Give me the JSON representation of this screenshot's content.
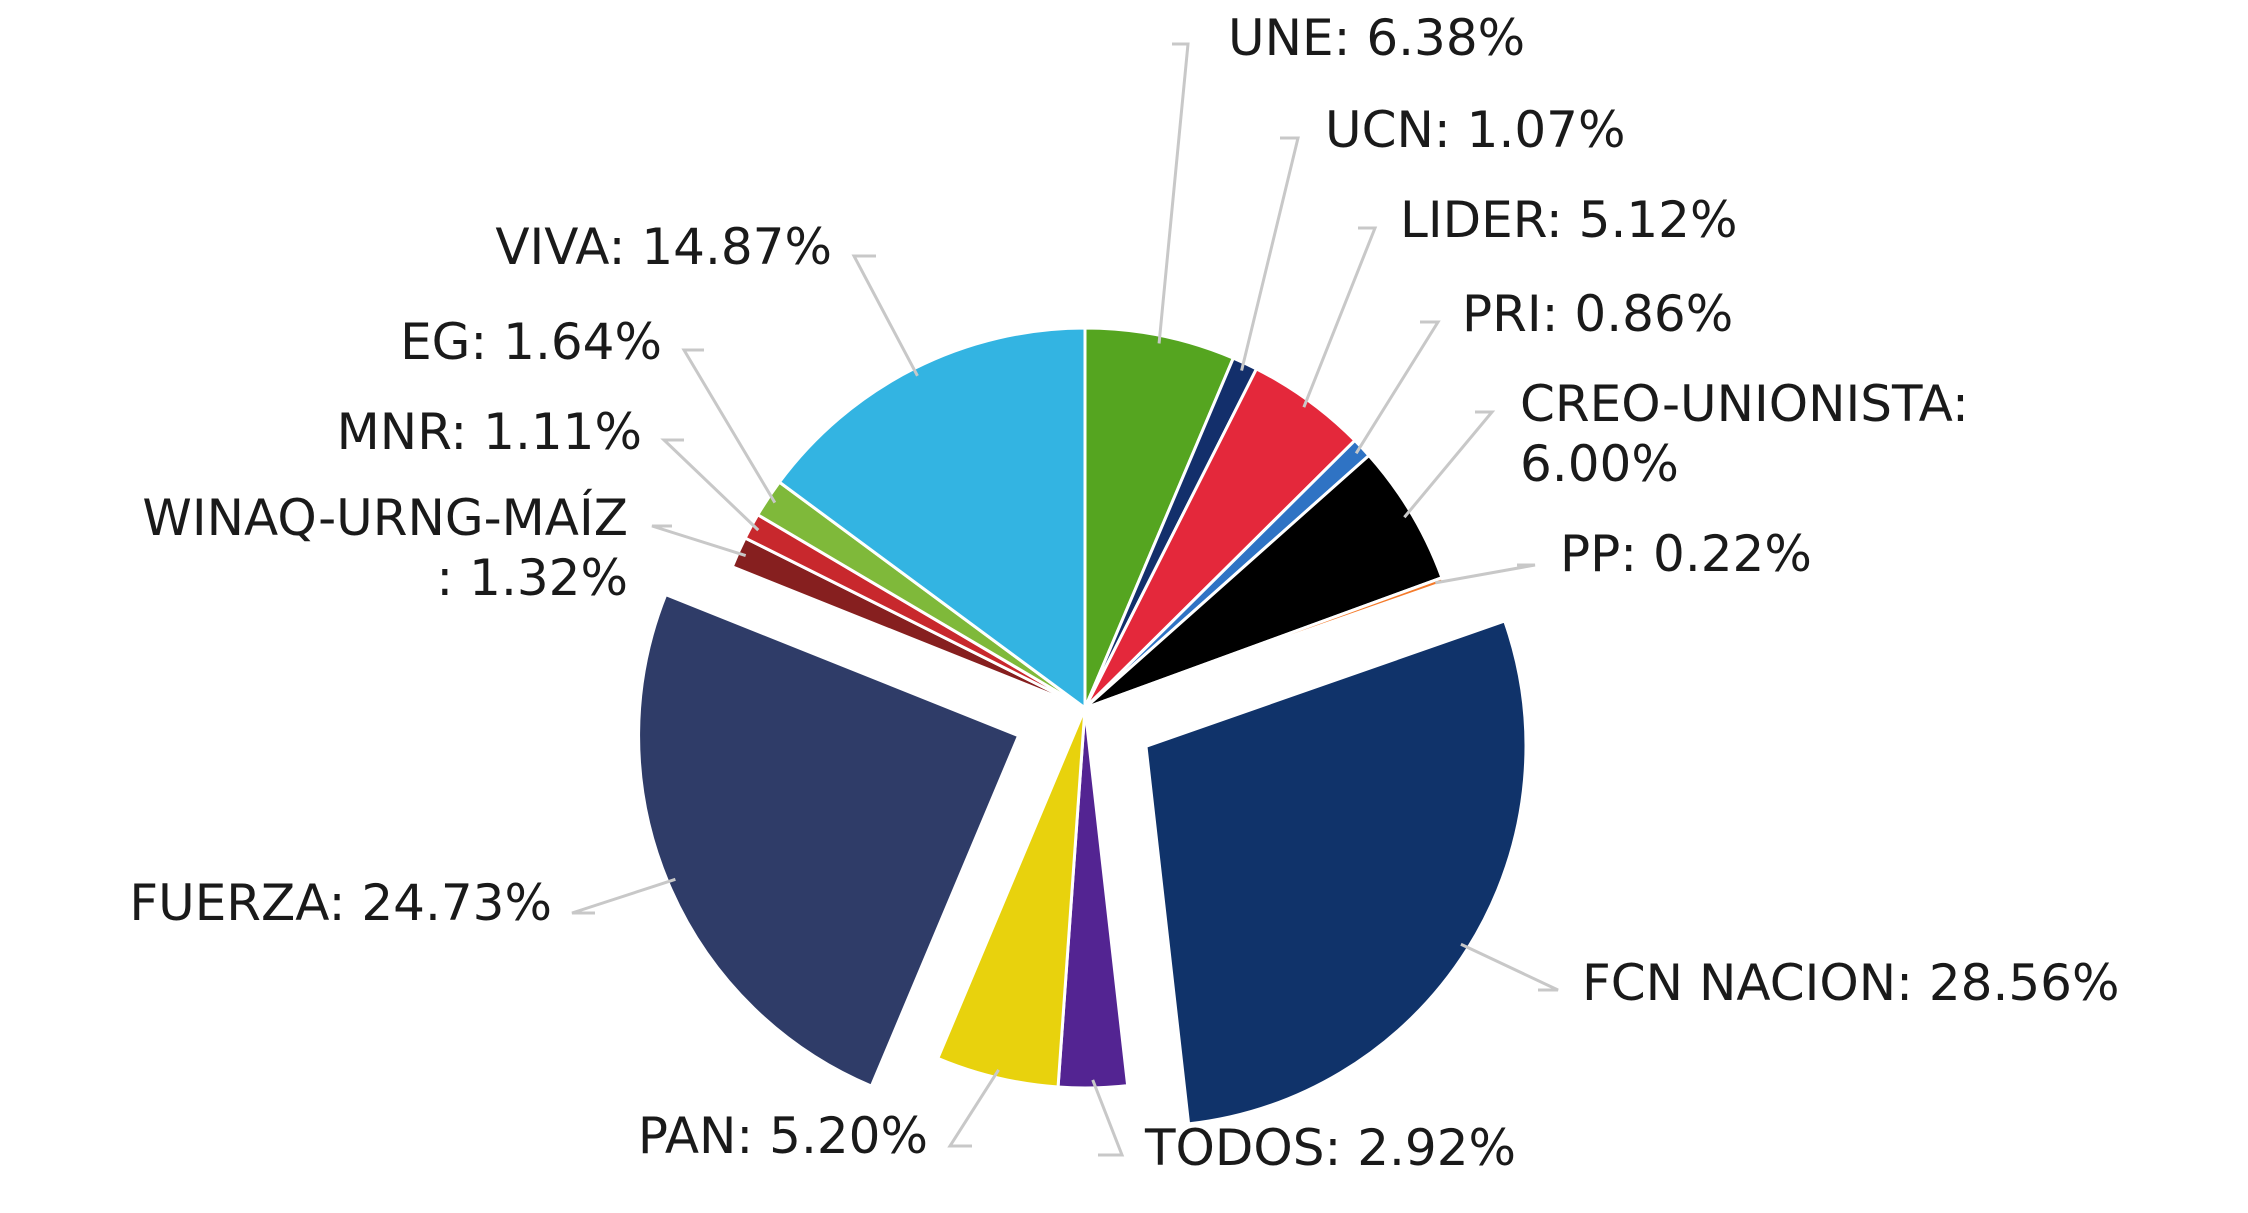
{
  "chart_data": {
    "type": "pie",
    "title": "",
    "slices": [
      {
        "name": "UNE",
        "value": 6.38,
        "display": "UNE: 6.38%",
        "color": "#55a520"
      },
      {
        "name": "UCN",
        "value": 1.07,
        "display": "UCN: 1.07%",
        "color": "#132f6b"
      },
      {
        "name": "LIDER",
        "value": 5.12,
        "display": "LIDER: 5.12%",
        "color": "#e4283b"
      },
      {
        "name": "PRI",
        "value": 0.86,
        "display": "PRI: 0.86%",
        "color": "#2f73c4"
      },
      {
        "name": "CREO-UNIONISTA",
        "value": 6.0,
        "display": [
          "CREO-UNIONISTA:",
          "6.00%"
        ],
        "color": "#000000"
      },
      {
        "name": "PP",
        "value": 0.22,
        "display": "PP: 0.22%",
        "color": "#f47a2a"
      },
      {
        "name": "FCN NACION",
        "value": 28.56,
        "display": "FCN NACION: 28.56%",
        "color": "#10336a",
        "exploded": true
      },
      {
        "name": "TODOS",
        "value": 2.92,
        "display": "TODOS: 2.92%",
        "color": "#532492"
      },
      {
        "name": "PAN",
        "value": 5.2,
        "display": "PAN: 5.20%",
        "color": "#e8d20d"
      },
      {
        "name": "FUERZA",
        "value": 24.73,
        "display": "FUERZA: 24.73%",
        "color": "#2f3c68",
        "exploded": true
      },
      {
        "name": "WINAQ-URNG-MAÍZ",
        "value": 1.32,
        "display": [
          "WINAQ-URNG-MAÍZ",
          ": 1.32%"
        ],
        "color": "#861f1f"
      },
      {
        "name": "MNR",
        "value": 1.11,
        "display": "MNR: 1.11%",
        "color": "#c8282d"
      },
      {
        "name": "EG",
        "value": 1.64,
        "display": "EG: 1.64%",
        "color": "#7fb93a"
      },
      {
        "name": "VIVA",
        "value": 14.87,
        "display": "VIVA: 14.87%",
        "color": "#33b4e2"
      }
    ]
  }
}
